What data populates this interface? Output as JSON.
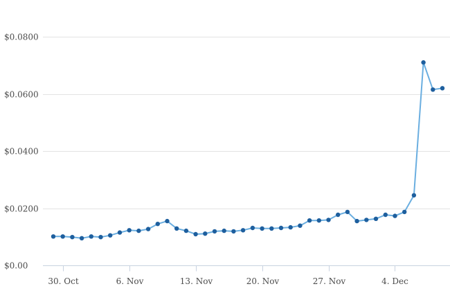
{
  "chart_data": {
    "type": "line",
    "title": "",
    "xlabel": "",
    "ylabel": "",
    "ylim": [
      0,
      0.08
    ],
    "grid": true,
    "legend": "none",
    "colors": {
      "line": "#6aaee0",
      "marker": "#1e5f9e",
      "grid": "#e3e3e3",
      "axis": "#c8d2e0"
    },
    "y_ticks": [
      {
        "value": 0.0,
        "label": "$0.00"
      },
      {
        "value": 0.02,
        "label": "$0.0200"
      },
      {
        "value": 0.04,
        "label": "$0.0400"
      },
      {
        "value": 0.06,
        "label": "$0.0600"
      },
      {
        "value": 0.08,
        "label": "$0.0800"
      }
    ],
    "x_ticks": [
      {
        "date": "2023-10-30",
        "label": "30. Oct"
      },
      {
        "date": "2023-11-06",
        "label": "6. Nov"
      },
      {
        "date": "2023-11-13",
        "label": "13. Nov"
      },
      {
        "date": "2023-11-20",
        "label": "20. Nov"
      },
      {
        "date": "2023-11-27",
        "label": "27. Nov"
      },
      {
        "date": "2023-12-04",
        "label": "4. Dec"
      }
    ],
    "series": [
      {
        "x": [
          "2023-10-29",
          "2023-10-30",
          "2023-10-31",
          "2023-11-01",
          "2023-11-02",
          "2023-11-03",
          "2023-11-04",
          "2023-11-05",
          "2023-11-06",
          "2023-11-07",
          "2023-11-08",
          "2023-11-09",
          "2023-11-10",
          "2023-11-11",
          "2023-11-12",
          "2023-11-13",
          "2023-11-14",
          "2023-11-15",
          "2023-11-16",
          "2023-11-17",
          "2023-11-18",
          "2023-11-19",
          "2023-11-20",
          "2023-11-21",
          "2023-11-22",
          "2023-11-23",
          "2023-11-24",
          "2023-11-25",
          "2023-11-26",
          "2023-11-27",
          "2023-11-28",
          "2023-11-29",
          "2023-11-30",
          "2023-12-01",
          "2023-12-02",
          "2023-12-03",
          "2023-12-04",
          "2023-12-05",
          "2023-12-06",
          "2023-12-07",
          "2023-12-08",
          "2023-12-09"
        ],
        "values": [
          0.0101,
          0.0101,
          0.0099,
          0.0095,
          0.0101,
          0.0099,
          0.0105,
          0.0115,
          0.0123,
          0.0121,
          0.0127,
          0.0145,
          0.0155,
          0.0129,
          0.0121,
          0.0109,
          0.0111,
          0.0119,
          0.0121,
          0.0119,
          0.0123,
          0.0131,
          0.0129,
          0.0129,
          0.0131,
          0.0133,
          0.0139,
          0.0157,
          0.0157,
          0.0159,
          0.0177,
          0.0187,
          0.0155,
          0.0159,
          0.0163,
          0.0177,
          0.0173,
          0.0187,
          0.0245,
          0.071,
          0.0615,
          0.062
        ]
      }
    ]
  }
}
